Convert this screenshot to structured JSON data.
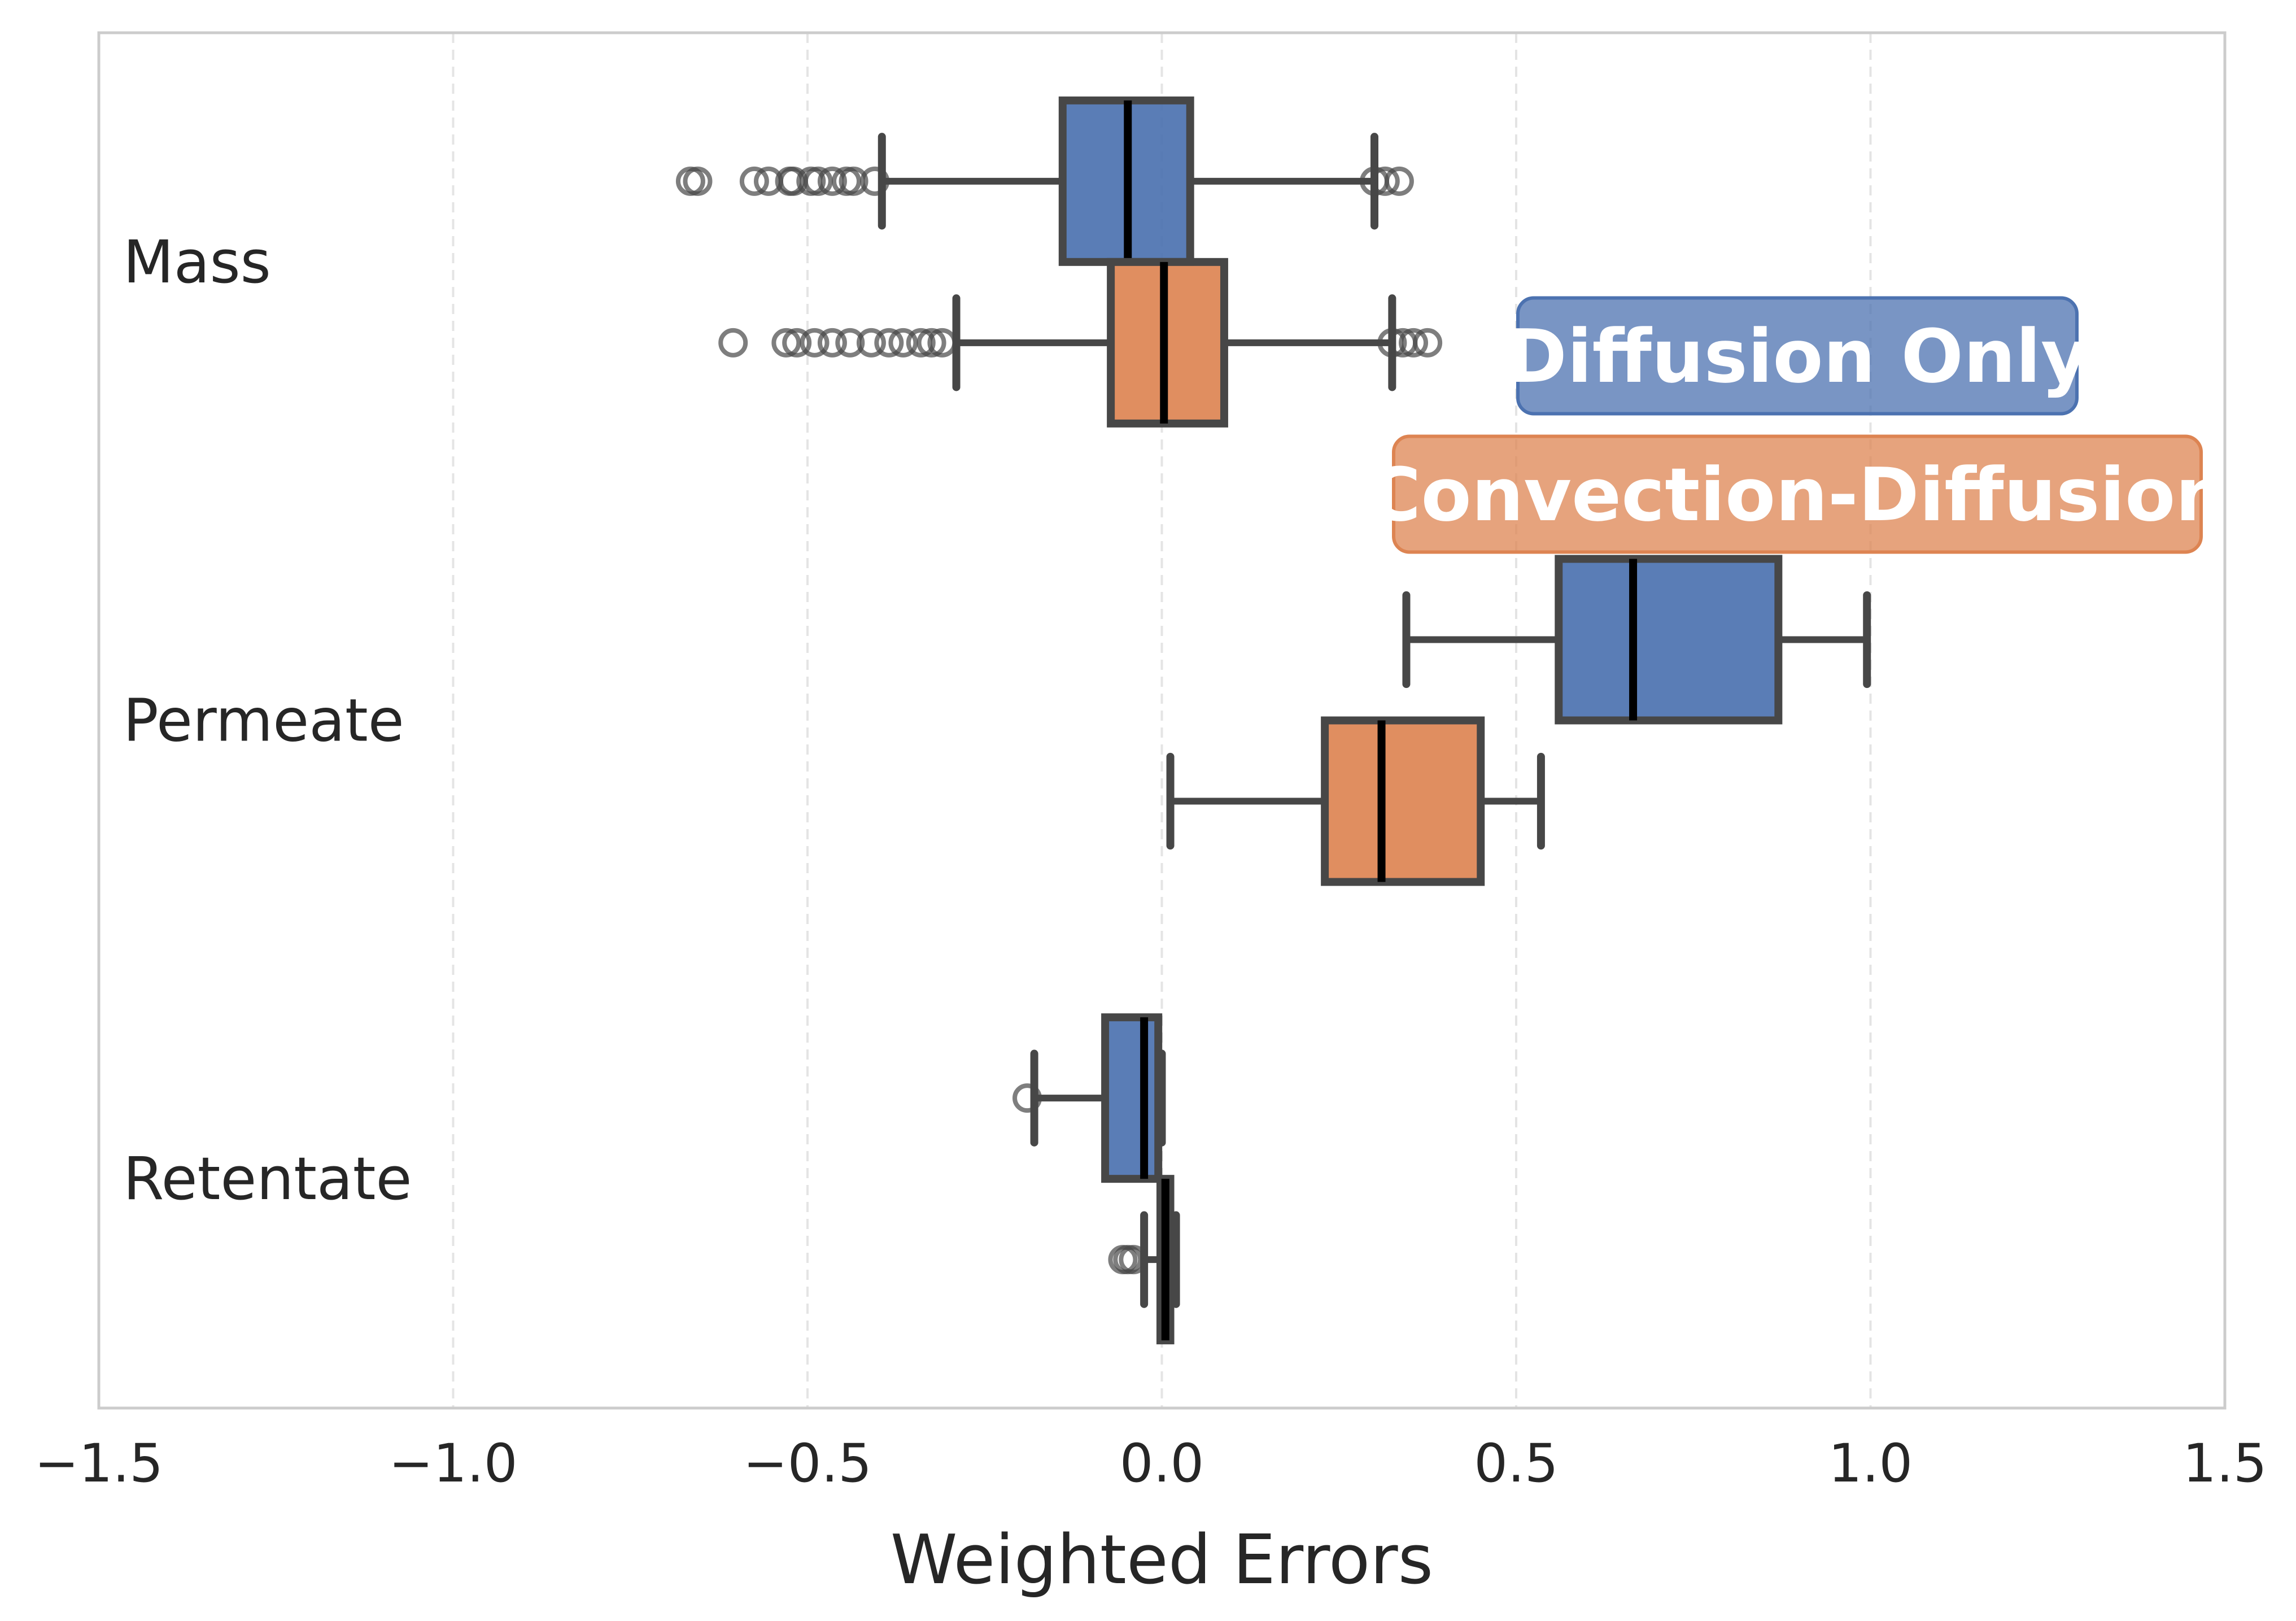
{
  "chart_data": {
    "type": "boxplot",
    "orientation": "horizontal",
    "title": "",
    "xlabel": "Weighted Errors",
    "ylabel": "",
    "xlim": [
      -1.5,
      1.5
    ],
    "xticks": [
      -1.5,
      -1.0,
      -0.5,
      0.0,
      0.5,
      1.0,
      1.5
    ],
    "xtick_labels": [
      "−1.5",
      "−1.0",
      "−0.5",
      "0.0",
      "0.5",
      "1.0",
      "1.5"
    ],
    "grid": "vertical dashed",
    "categories": [
      "Mass",
      "Permeate",
      "Retentate"
    ],
    "legend_position": "right, inside axes",
    "series": [
      {
        "name": "Diffusion Only",
        "color": "#4c72b0",
        "boxes": [
          {
            "category": "Mass",
            "whisker_low": -0.395,
            "q1": -0.14,
            "median": -0.048,
            "q3": 0.04,
            "whisker_high": 0.3,
            "outliers": [
              -0.665,
              -0.655,
              -0.575,
              -0.555,
              -0.525,
              -0.52,
              -0.495,
              -0.485,
              -0.465,
              -0.445,
              -0.435,
              -0.405,
              0.3,
              0.315,
              0.335
            ]
          },
          {
            "category": "Permeate",
            "whisker_low": 0.345,
            "q1": 0.56,
            "median": 0.665,
            "q3": 0.87,
            "whisker_high": 0.995,
            "outliers": []
          },
          {
            "category": "Retentate",
            "whisker_low": -0.18,
            "q1": -0.08,
            "median": -0.025,
            "q3": -0.005,
            "whisker_high": 0.0,
            "outliers": [
              -0.19
            ]
          }
        ]
      },
      {
        "name": "Convection-Diffusion",
        "color": "#dd8452",
        "boxes": [
          {
            "category": "Mass",
            "whisker_low": -0.29,
            "q1": -0.072,
            "median": 0.003,
            "q3": 0.088,
            "whisker_high": 0.325,
            "outliers": [
              -0.605,
              -0.53,
              -0.515,
              -0.49,
              -0.465,
              -0.44,
              -0.41,
              -0.385,
              -0.365,
              -0.34,
              -0.325,
              -0.31,
              0.325,
              0.34,
              0.355,
              0.375
            ]
          },
          {
            "category": "Permeate",
            "whisker_low": 0.012,
            "q1": 0.23,
            "median": 0.31,
            "q3": 0.45,
            "whisker_high": 0.535,
            "outliers": []
          },
          {
            "category": "Retentate",
            "whisker_low": -0.025,
            "q1": -0.002,
            "median": 0.005,
            "q3": 0.012,
            "whisker_high": 0.02,
            "outliers": [
              -0.055,
              -0.048,
              -0.04
            ]
          }
        ]
      }
    ],
    "legend": [
      "Diffusion Only",
      "Convection-Diffusion"
    ]
  }
}
